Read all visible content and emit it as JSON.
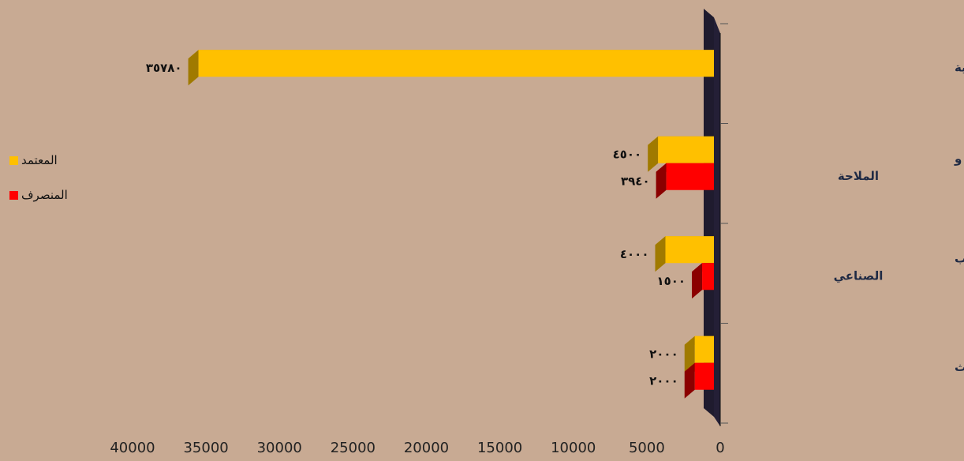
{
  "chart_data": {
    "type": "bar",
    "orientation": "horizontal",
    "x_axis_reversed": true,
    "xlim": [
      0,
      40000
    ],
    "x_ticks": [
      0,
      5000,
      10000,
      15000,
      20000,
      25000,
      30000,
      35000,
      40000
    ],
    "categories": [
      [
        "قطاع التخخطيط و التنمية"
      ],
      [
        "قطاع التدريب معهد الاتصالات و",
        "الملاحة"
      ],
      [
        "قطاع التدريب - معهد التدريب",
        "الصناعي"
      ],
      [
        "قطاع التعليم التطبيقي و البحوث"
      ]
    ],
    "series": [
      {
        "name": "المعتمد",
        "color": "#ffc000",
        "side_color": "#a07a00",
        "values": [
          35780,
          4500,
          4000,
          2000
        ],
        "labels": [
          "٣٥٧٨٠",
          "٤٥٠٠",
          "٤٠٠٠",
          "٢٠٠٠"
        ]
      },
      {
        "name": "المنصرف",
        "color": "#ff0000",
        "side_color": "#8b0000",
        "values": [
          null,
          3940,
          1500,
          2000
        ],
        "labels": [
          null,
          "٣٩٤٠",
          "١٥٠٠",
          "٢٠٠٠"
        ]
      }
    ],
    "legend_position": "left",
    "grid": false,
    "title": "",
    "xlabel": "",
    "ylabel": ""
  }
}
